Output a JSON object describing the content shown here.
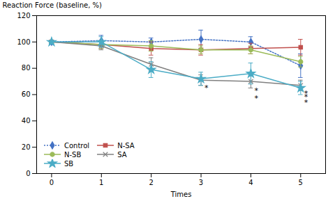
{
  "chart_data": {
    "type": "line",
    "x": [
      0,
      1,
      2,
      3,
      4,
      5
    ],
    "series": [
      {
        "name": "Control",
        "color": "#4472C4",
        "marker": "diamond",
        "line_style": "dotted",
        "values": [
          100,
          101,
          100,
          102,
          100,
          82
        ],
        "yerr": [
          1,
          4,
          3,
          7,
          4,
          9
        ]
      },
      {
        "name": "N-SA",
        "color": "#C0504D",
        "marker": "square",
        "line_style": "solid",
        "values": [
          100,
          98,
          95,
          94,
          95,
          96
        ],
        "yerr": [
          1,
          3,
          5,
          4,
          4,
          6
        ]
      },
      {
        "name": "N-SB",
        "color": "#9BBB59",
        "marker": "circle",
        "line_style": "solid",
        "values": [
          100,
          98,
          97,
          94,
          94,
          85
        ],
        "yerr": [
          1,
          3,
          4,
          3,
          3,
          4
        ]
      },
      {
        "name": "SA",
        "color": "#808080",
        "marker": "x",
        "line_style": "solid",
        "values": [
          100,
          97,
          83,
          71,
          70,
          67
        ],
        "yerr": [
          1,
          3,
          5,
          4,
          5,
          4
        ]
      },
      {
        "name": "SB",
        "color": "#4BACC6",
        "marker": "star",
        "line_style": "solid",
        "values": [
          100,
          100,
          79,
          72,
          76,
          65
        ],
        "yerr": [
          1,
          4,
          6,
          5,
          8,
          5
        ]
      }
    ],
    "annotations": [
      {
        "x": 3,
        "y": 65,
        "text": "*"
      },
      {
        "x": 4,
        "y": 63,
        "text": "*"
      },
      {
        "x": 4,
        "y": 57,
        "text": "*"
      },
      {
        "x": 5,
        "y": 61,
        "text": "*"
      },
      {
        "x": 5,
        "y": 58,
        "text": "*"
      },
      {
        "x": 5,
        "y": 54,
        "text": "*"
      }
    ],
    "xlabel": "Times",
    "ylabel": "Reaction Force (baseline, %)",
    "xlim": [
      -0.3,
      5.5
    ],
    "xticks": [
      0,
      1,
      2,
      3,
      4,
      5
    ],
    "ylim": [
      0,
      120
    ],
    "yticks": [
      0,
      20,
      40,
      60,
      80,
      100,
      120
    ],
    "grid": false,
    "legend": "lower left"
  }
}
